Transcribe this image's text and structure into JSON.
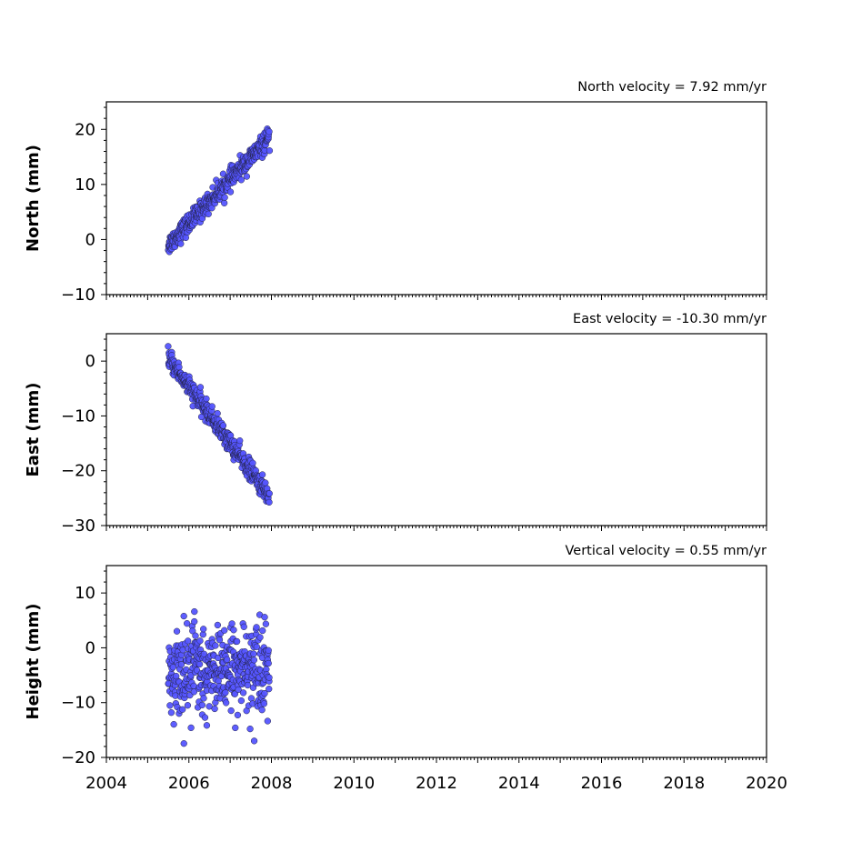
{
  "chart_data": [
    {
      "type": "scatter",
      "title": "North velocity = 7.92 mm/yr",
      "ylabel": "North (mm)",
      "xlabel": "",
      "xlim": [
        2004,
        2020
      ],
      "ylim": [
        -10,
        25
      ],
      "yticks": [
        -10,
        0,
        10,
        20
      ],
      "marker_color": "#5555ff",
      "trend": {
        "x_start": 2005.5,
        "y_start": -1.0,
        "slope": 7.92,
        "noise_sd": 0.9
      },
      "series": [
        {
          "x": [
            2005.5,
            2005.75,
            2006.0,
            2006.25,
            2006.5,
            2006.75,
            2007.0,
            2007.25,
            2007.5,
            2007.75,
            2007.95
          ],
          "values": [
            -1.0,
            0.0,
            2.0,
            3.5,
            6.0,
            7.5,
            9.5,
            12.0,
            13.5,
            15.0,
            17.0
          ]
        }
      ]
    },
    {
      "type": "scatter",
      "title": "East velocity = -10.30 mm/yr",
      "ylabel": "East (mm)",
      "xlabel": "",
      "xlim": [
        2004,
        2020
      ],
      "ylim": [
        -30,
        5
      ],
      "yticks": [
        -30,
        -20,
        -10,
        0
      ],
      "marker_color": "#5555ff",
      "trend": {
        "x_start": 2005.5,
        "y_start": 0.5,
        "slope": -10.3,
        "noise_sd": 0.9
      },
      "series": [
        {
          "x": [
            2005.5,
            2005.75,
            2006.0,
            2006.25,
            2006.5,
            2006.75,
            2007.0,
            2007.25,
            2007.5,
            2007.75,
            2007.95
          ],
          "values": [
            0.5,
            -3.0,
            -5.5,
            -7.5,
            -8.5,
            -11.0,
            -15.0,
            -17.5,
            -19.5,
            -22.5,
            -25.5
          ]
        }
      ]
    },
    {
      "type": "scatter",
      "title": "Vertical velocity = 0.55 mm/yr",
      "ylabel": "Height (mm)",
      "xlabel": "",
      "xlim": [
        2004,
        2020
      ],
      "ylim": [
        -20,
        15
      ],
      "yticks": [
        -20,
        -10,
        0,
        10
      ],
      "xticks": [
        2004,
        2006,
        2008,
        2010,
        2012,
        2014,
        2016,
        2018,
        2020
      ],
      "marker_color": "#5555ff",
      "trend": {
        "x_start": 2005.5,
        "y_start": -4.0,
        "slope": 0.55,
        "noise_sd": 4.0
      },
      "series": [
        {
          "x": [
            2005.5,
            2005.75,
            2006.0,
            2006.25,
            2006.5,
            2006.75,
            2007.0,
            2007.25,
            2007.5,
            2007.75,
            2007.95
          ],
          "values": [
            -4.0,
            -3.5,
            -4.5,
            -3.0,
            -4.0,
            -3.5,
            -4.5,
            -3.0,
            -4.0,
            -2.5,
            -3.0
          ]
        }
      ]
    }
  ]
}
